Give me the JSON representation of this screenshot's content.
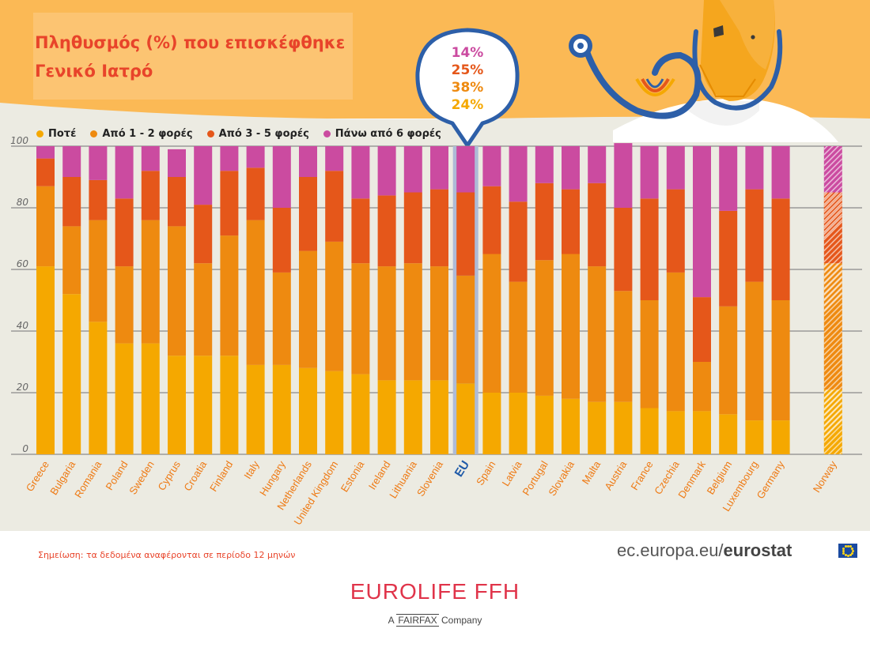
{
  "title_lines": [
    "Πληθυσμός (%) που επισκέφθηκε",
    "Γενικό Ιατρό"
  ],
  "legend": [
    {
      "label": "Ποτέ",
      "color": "#f5a800"
    },
    {
      "label": "Από 1 - 2 φορές",
      "color": "#ee8a10"
    },
    {
      "label": "Από 3 - 5 φορές",
      "color": "#e5571a"
    },
    {
      "label": "Πάνω από 6 φορές",
      "color": "#cb4ba0"
    }
  ],
  "eu_bubble": [
    "14%",
    "25%",
    "38%",
    "24%"
  ],
  "note": "Σημείωση: τα δεδομένα αναφέρονται σε περίοδο 12 μηνών",
  "source": {
    "prefix": "ec.europa.eu/",
    "bold": "eurostat"
  },
  "brand": {
    "name": "EUROLIFE FFH",
    "sub_prefix": "A ",
    "sub_mark": "FAIRFAX",
    "sub_suffix": " Company"
  },
  "chart_data": {
    "type": "bar",
    "stacked": true,
    "categories": [
      "Greece",
      "Bulgaria",
      "Romania",
      "Poland",
      "Sweden",
      "Cyprus",
      "Croatia",
      "Finland",
      "Italy",
      "Hungary",
      "Netherlands",
      "United Kingdom",
      "Estonia",
      "Ireland",
      "Lithuania",
      "Slovenia",
      "EU",
      "Spain",
      "Latvia",
      "Portugal",
      "Slovakia",
      "Malta",
      "Austria",
      "France",
      "Czechia",
      "Denmark",
      "Belgium",
      "Luxembourg",
      "Germany",
      "Norway"
    ],
    "series": [
      {
        "name": "Ποτέ",
        "values": [
          61,
          52,
          43,
          36,
          36,
          32,
          32,
          32,
          29,
          29,
          28,
          27,
          26,
          24,
          24,
          24,
          23,
          20,
          20,
          19,
          18,
          17,
          17,
          15,
          14,
          14,
          13,
          11,
          11,
          21
        ]
      },
      {
        "name": "Από 1 - 2 φορές",
        "values": [
          26,
          22,
          33,
          25,
          40,
          42,
          30,
          39,
          47,
          30,
          38,
          42,
          36,
          37,
          38,
          37,
          35,
          45,
          36,
          44,
          47,
          44,
          36,
          35,
          45,
          16,
          35,
          45,
          39,
          41
        ]
      },
      {
        "name": "Από 3 - 5 φορές",
        "values": [
          9,
          16,
          13,
          22,
          16,
          16,
          19,
          21,
          17,
          21,
          24,
          23,
          21,
          23,
          23,
          25,
          27,
          22,
          26,
          25,
          21,
          27,
          27,
          33,
          27,
          21,
          31,
          30,
          33,
          23
        ]
      },
      {
        "name": "Πάνω από 6 φορές",
        "values": [
          4,
          10,
          11,
          17,
          8,
          9,
          19,
          8,
          7,
          20,
          10,
          8,
          17,
          16,
          15,
          14,
          15,
          13,
          18,
          12,
          14,
          12,
          21,
          17,
          14,
          49,
          21,
          14,
          17,
          15
        ]
      }
    ],
    "highlight": "EU",
    "hatched": [
      "Norway"
    ],
    "ylim": [
      0,
      100
    ],
    "yticks": [
      0,
      20,
      40,
      60,
      80,
      100
    ],
    "grid": true,
    "legend_position": "top-left"
  }
}
